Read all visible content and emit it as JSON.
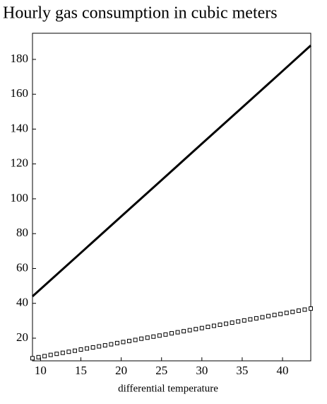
{
  "chart_data": {
    "type": "line",
    "title": "Hourly gas consumption in cubic meters",
    "x_label": "differential temperature",
    "xlim": [
      9,
      43.5
    ],
    "xticks": [
      10,
      15,
      20,
      25,
      30,
      35,
      40
    ],
    "ylim": [
      7,
      195
    ],
    "yticks": [
      20,
      40,
      60,
      80,
      100,
      120,
      140,
      160,
      180
    ],
    "series": [
      {
        "color": "#000000",
        "marker": "none",
        "x": [
          9,
          15,
          20,
          25,
          30,
          35,
          40,
          43.5
        ],
        "values": [
          44,
          69,
          89.9,
          110.7,
          131.6,
          152.4,
          173.3,
          188
        ]
      },
      {
        "color": "#000000",
        "marker": "square",
        "x": [
          9,
          9.75,
          10.5,
          11.25,
          12,
          12.75,
          13.5,
          14.25,
          15,
          15.75,
          16.5,
          17.25,
          18,
          18.75,
          19.5,
          20.25,
          21,
          21.75,
          22.5,
          23.25,
          24,
          24.75,
          25.5,
          26.25,
          27,
          27.75,
          28.5,
          29.25,
          30,
          30.75,
          31.5,
          32.25,
          33,
          33.75,
          34.5,
          35.25,
          36,
          36.75,
          37.5,
          38.25,
          39,
          39.75,
          40.5,
          41.25,
          42,
          42.75,
          43.5
        ],
        "values": [
          8.5,
          9.1,
          9.7,
          10.4,
          11.0,
          11.6,
          12.2,
          12.8,
          13.5,
          14.1,
          14.7,
          15.3,
          15.9,
          16.5,
          17.2,
          17.8,
          18.4,
          19.0,
          19.7,
          20.3,
          20.9,
          21.5,
          22.1,
          22.8,
          23.4,
          24.0,
          24.6,
          25.2,
          25.8,
          26.5,
          27.1,
          27.7,
          28.3,
          28.9,
          29.6,
          30.2,
          30.8,
          31.4,
          32.0,
          32.7,
          33.3,
          33.9,
          34.5,
          35.1,
          35.8,
          36.4,
          37.0
        ]
      }
    ]
  }
}
